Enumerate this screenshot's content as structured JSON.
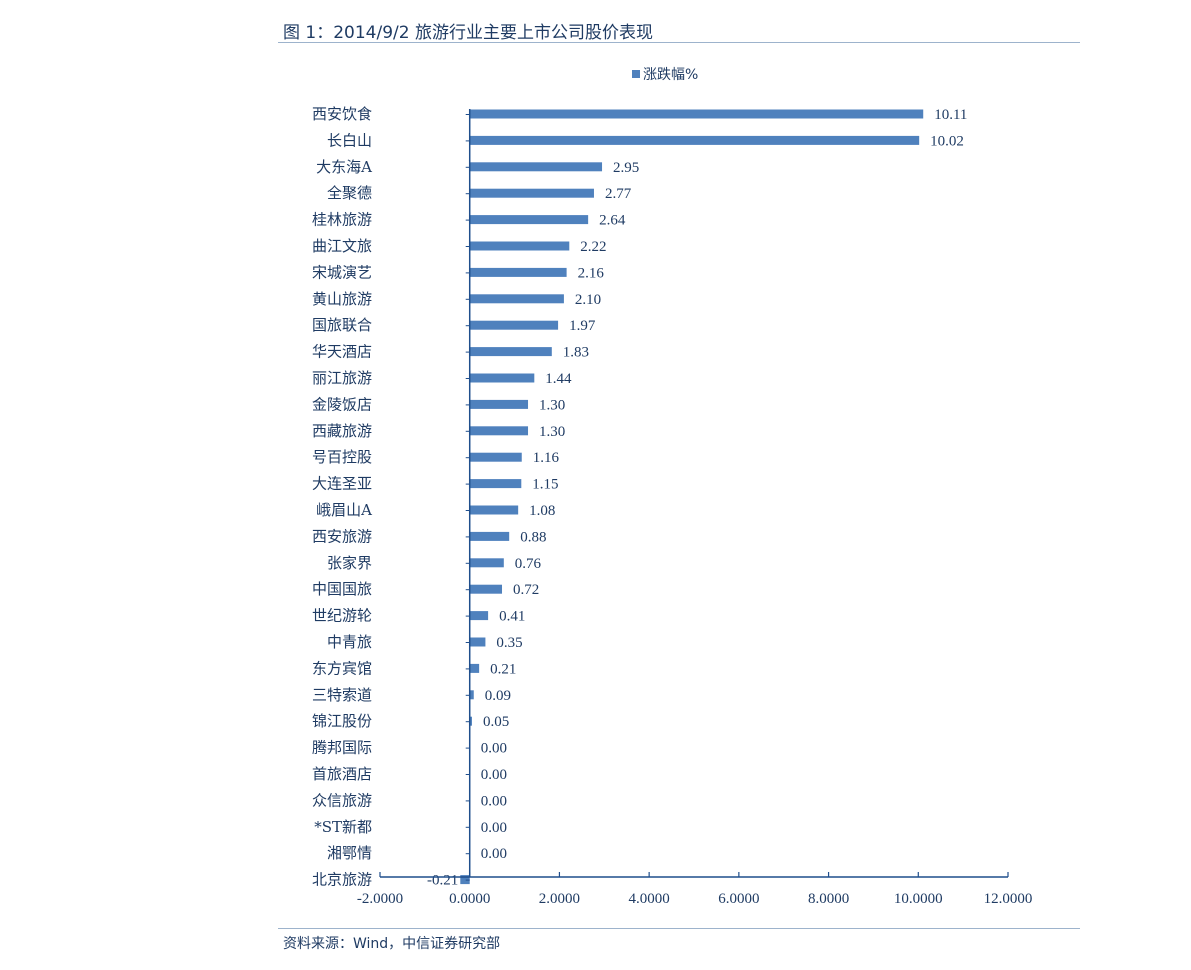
{
  "figure": {
    "title": "图 1：2014/9/2 旅游行业主要上市公司股价表现",
    "source": "资料来源：Wind，中信证券研究部"
  },
  "colors": {
    "bar": "#4f81bd",
    "axis": "#1f4e8c",
    "text": "#1f3b63"
  },
  "chart_data": {
    "type": "bar",
    "orientation": "horizontal",
    "title": "",
    "xlabel": "",
    "ylabel": "",
    "legend": {
      "position": "top-center"
    },
    "grid": false,
    "categories": [
      "西安饮食",
      "长白山",
      "大东海A",
      "全聚德",
      "桂林旅游",
      "曲江文旅",
      "宋城演艺",
      "黄山旅游",
      "国旅联合",
      "华天酒店",
      "丽江旅游",
      "金陵饭店",
      "西藏旅游",
      "号百控股",
      "大连圣亚",
      "峨眉山A",
      "西安旅游",
      "张家界",
      "中国国旅",
      "世纪游轮",
      "中青旅",
      "东方宾馆",
      "三特索道",
      "锦江股份",
      "腾邦国际",
      "首旅酒店",
      "众信旅游",
      "*ST新都",
      "湘鄂情",
      "北京旅游"
    ],
    "series": [
      {
        "name": "涨跌幅%",
        "values": [
          10.11,
          10.02,
          2.95,
          2.77,
          2.64,
          2.22,
          2.16,
          2.1,
          1.97,
          1.83,
          1.44,
          1.3,
          1.3,
          1.16,
          1.15,
          1.08,
          0.88,
          0.76,
          0.72,
          0.41,
          0.35,
          0.21,
          0.09,
          0.05,
          0.0,
          0.0,
          0.0,
          0.0,
          0.0,
          -0.21
        ]
      }
    ],
    "value_labels": [
      "10.11",
      "10.02",
      "2.95",
      "2.77",
      "2.64",
      "2.22",
      "2.16",
      "2.10",
      "1.97",
      "1.83",
      "1.44",
      "1.30",
      "1.30",
      "1.16",
      "1.15",
      "1.08",
      "0.88",
      "0.76",
      "0.72",
      "0.41",
      "0.35",
      "0.21",
      "0.09",
      "0.05",
      "0.00",
      "0.00",
      "0.00",
      "0.00",
      "0.00",
      "-0.21"
    ],
    "xlim": [
      -2,
      12
    ],
    "xticks": [
      -2,
      0,
      2,
      4,
      6,
      8,
      10,
      12
    ],
    "xtick_labels": [
      "-2.0000",
      "0.0000",
      "2.0000",
      "4.0000",
      "6.0000",
      "8.0000",
      "10.0000",
      "12.0000"
    ]
  }
}
